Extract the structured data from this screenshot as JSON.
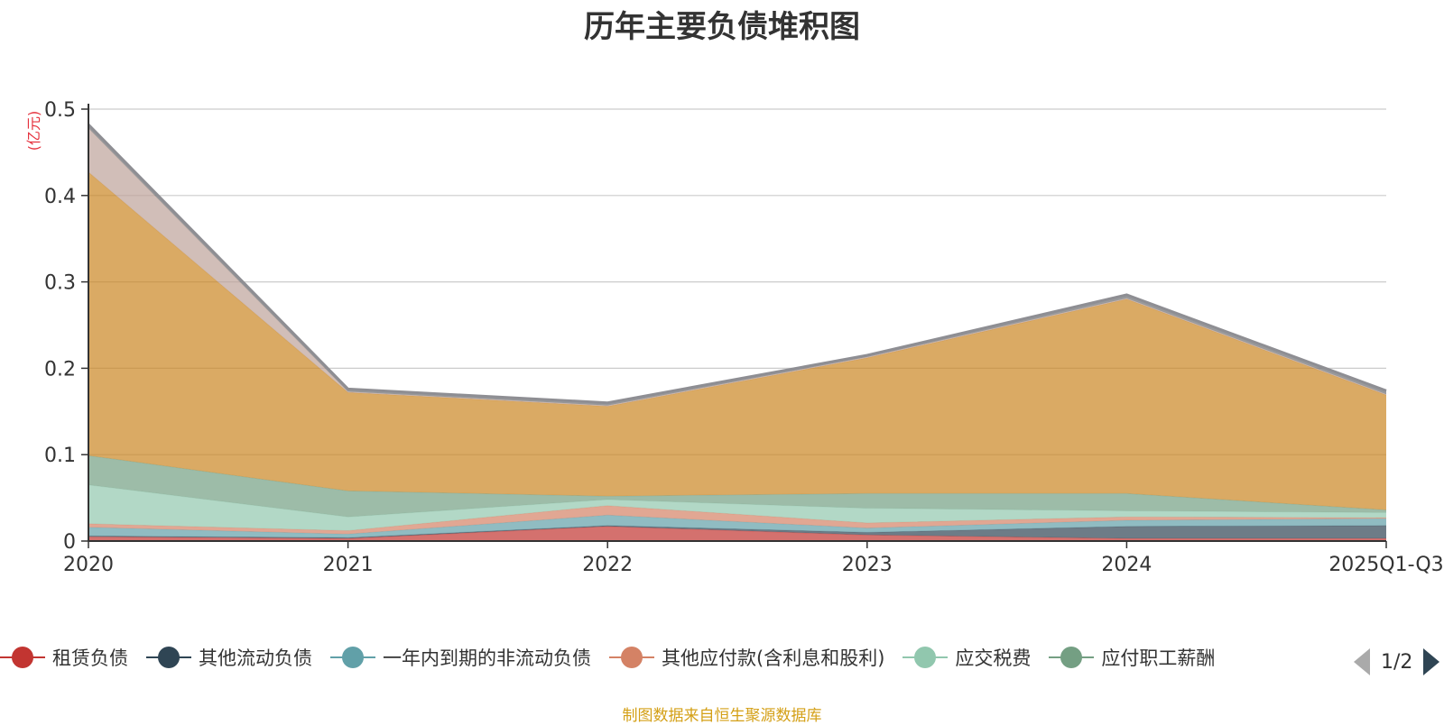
{
  "chart_data": {
    "type": "area",
    "stacked": true,
    "title": "历年主要负债堆积图",
    "ylabel": "(亿元)",
    "ylim": [
      0,
      0.5
    ],
    "yticks": [
      "0",
      "0.1",
      "0.2",
      "0.3",
      "0.4",
      "0.5"
    ],
    "grid": true,
    "legend_position": "bottom",
    "categories": [
      "2020",
      "2021",
      "2022",
      "2023",
      "2024",
      "2025Q1-Q3"
    ],
    "series": [
      {
        "name": "租赁负债",
        "color": "#c23531",
        "values": [
          0.005,
          0.003,
          0.017,
          0.007,
          0.003,
          0.003
        ]
      },
      {
        "name": "其他流动负债",
        "color": "#2f4554",
        "values": [
          0.001,
          0.001,
          0.001,
          0.003,
          0.014,
          0.015
        ]
      },
      {
        "name": "一年内到期的非流动负债",
        "color": "#61a0a8",
        "values": [
          0.01,
          0.004,
          0.012,
          0.005,
          0.007,
          0.008
        ]
      },
      {
        "name": "其他应付款(含利息和股利)",
        "color": "#d48265",
        "values": [
          0.004,
          0.004,
          0.011,
          0.006,
          0.004,
          0.001
        ]
      },
      {
        "name": "应交税费",
        "color": "#91c7ae",
        "values": [
          0.045,
          0.016,
          0.007,
          0.017,
          0.007,
          0.006
        ]
      },
      {
        "name": "应付职工薪酬",
        "color": "#749f83",
        "values": [
          0.034,
          0.03,
          0.004,
          0.017,
          0.02,
          0.003
        ]
      },
      {
        "name": "",
        "color": "#ca8622",
        "values": [
          0.328,
          0.114,
          0.104,
          0.157,
          0.225,
          0.133
        ]
      },
      {
        "name": "",
        "color": "#bda29a",
        "values": [
          0.051,
          0.001,
          0.001,
          0.001,
          0.001,
          0.001
        ]
      },
      {
        "name": "",
        "color": "#6e7074",
        "values": [
          0.004,
          0.003,
          0.003,
          0.002,
          0.004,
          0.004
        ]
      }
    ]
  },
  "legend": {
    "items": [
      {
        "label": "租赁负债",
        "color": "#c23531"
      },
      {
        "label": "其他流动负债",
        "color": "#2f4554"
      },
      {
        "label": "一年内到期的非流动负债",
        "color": "#61a0a8"
      },
      {
        "label": "其他应付款(含利息和股利)",
        "color": "#d48265"
      },
      {
        "label": "应交税费",
        "color": "#91c7ae"
      },
      {
        "label": "应付职工薪酬",
        "color": "#749f83"
      }
    ],
    "page_text": "1/2"
  },
  "footer": {
    "source": "制图数据来自恒生聚源数据库"
  }
}
